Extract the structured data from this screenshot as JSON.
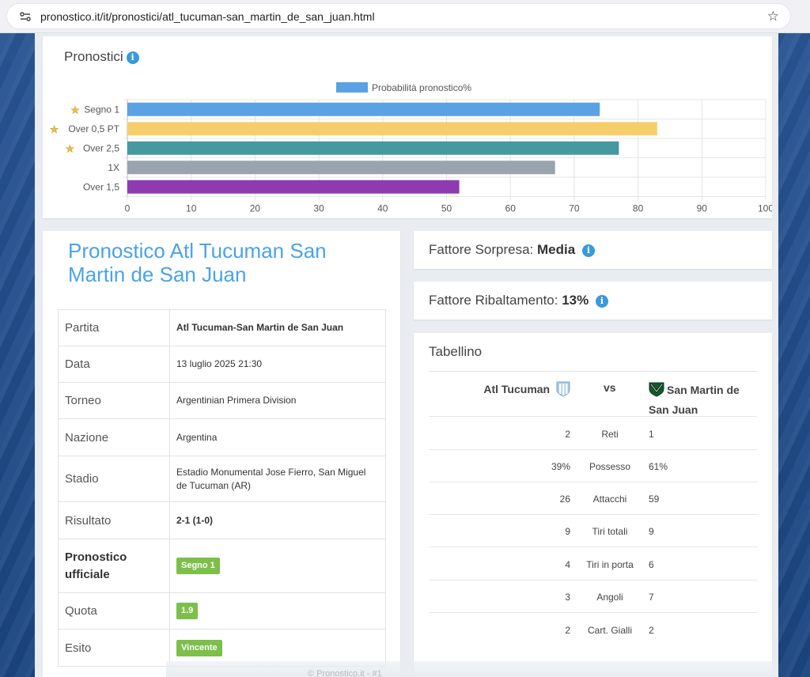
{
  "browser": {
    "url": "pronostico.it/it/pronostici/atl_tucuman-san_martin_de_san_juan.html"
  },
  "pronostici": {
    "title": "Pronostici",
    "chart_data": {
      "type": "bar",
      "orientation": "horizontal",
      "legend": "Probabilità pronostico%",
      "legend_position": "top",
      "categories": [
        "Segno 1",
        "Over 0,5 PT",
        "Over 2,5",
        "1X",
        "Over 1,5"
      ],
      "starred": [
        true,
        true,
        true,
        false,
        false
      ],
      "values": [
        74,
        83,
        77,
        67,
        52
      ],
      "colors": [
        "#5aa2e3",
        "#f5ce6b",
        "#4799a0",
        "#9aa4ae",
        "#8e3bb0"
      ],
      "xlim": [
        0,
        100
      ],
      "xticks": [
        "0",
        "10",
        "20",
        "30",
        "40",
        "50",
        "60",
        "70",
        "80",
        "90",
        "100"
      ],
      "grid": true
    }
  },
  "match": {
    "title": "Pronostico Atl Tucuman San Martin de San Juan",
    "rows": [
      {
        "label": "Partita",
        "value": "Atl Tucuman-San Martin de San Juan"
      },
      {
        "label": "Data",
        "value": "13 luglio 2025 21:30"
      },
      {
        "label": "Torneo",
        "value": "Argentinian Primera Division"
      },
      {
        "label": "Nazione",
        "value": "Argentina"
      },
      {
        "label": "Stadio",
        "value": "Estadio Monumental Jose Fierro, San Miguel de Tucuman (AR)"
      },
      {
        "label": "Risultato",
        "value": "2-1 (1-0)"
      },
      {
        "label": "Pronostico ufficiale",
        "value": "Segno 1"
      },
      {
        "label": "Quota",
        "value": "1.9"
      },
      {
        "label": "Esito",
        "value": "Vincente"
      }
    ]
  },
  "sorpresa": {
    "label": "Fattore Sorpresa:",
    "value": "Media"
  },
  "ribaltamento": {
    "label": "Fattore Ribaltamento:",
    "value": "13%"
  },
  "tabellino": {
    "title": "Tabellino",
    "home": "Atl Tucuman",
    "vs": "vs",
    "away": "San Martin de San Juan",
    "stats": [
      {
        "home": "2",
        "label": "Reti",
        "away": "1"
      },
      {
        "home": "39%",
        "label": "Possesso",
        "away": "61%"
      },
      {
        "home": "26",
        "label": "Attacchi",
        "away": "59"
      },
      {
        "home": "9",
        "label": "Tiri totali",
        "away": "9"
      },
      {
        "home": "4",
        "label": "Tiri in porta",
        "away": "6"
      },
      {
        "home": "3",
        "label": "Angoli",
        "away": "7"
      },
      {
        "home": "2",
        "label": "Cart. Gialli",
        "away": "2"
      }
    ]
  },
  "footer": {
    "copyright": "© Pronostico.it - #1"
  }
}
